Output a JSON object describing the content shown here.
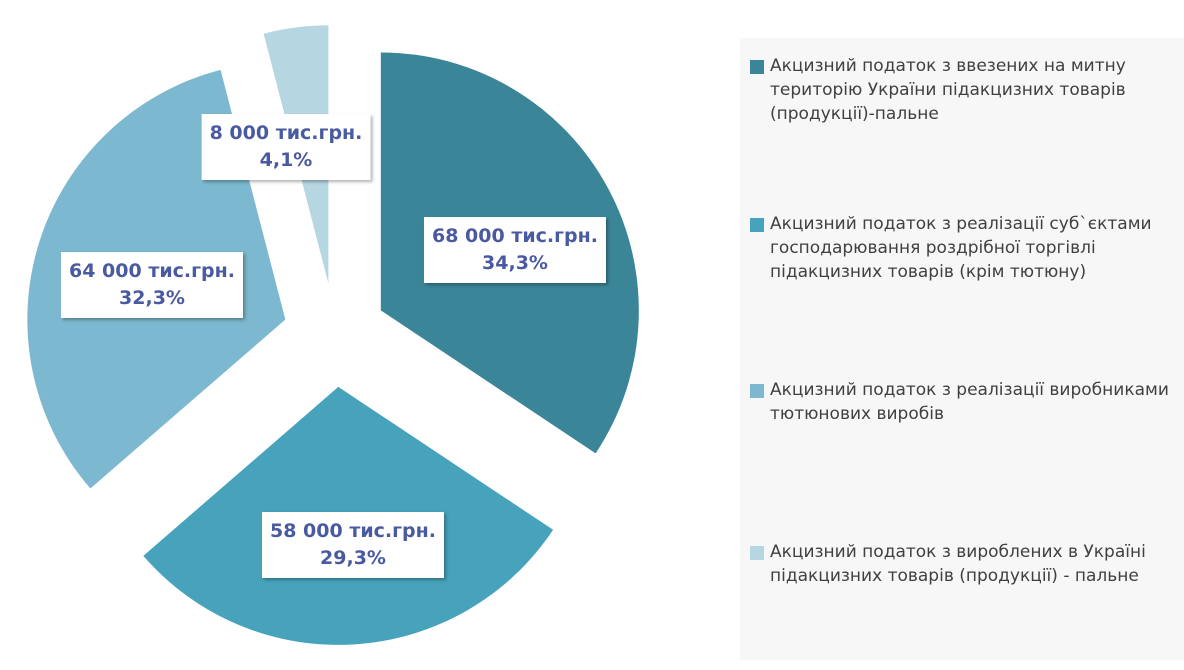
{
  "chart_data": {
    "type": "pie",
    "categories": [
      "Акцизний податок з ввезених на митну територію України підакцизних товарів (продукції)-пальне",
      "Акцизний податок з реалізації суб`єктами господарювання роздрібної торгівлі підакцизних товарів (крім тютюну)",
      "Акцизний податок з реалізації виробниками тютюнових виробів",
      "Акцизний податок з вироблених в Україні підакцизних товарів (продукції) - пальне"
    ],
    "values": [
      68000,
      58000,
      64000,
      8000
    ],
    "value_labels": [
      "68 000 тис.грн.",
      "58 000 тис.грн.",
      "64 000 тис.грн.",
      "8 000 тис.грн."
    ],
    "percent_labels": [
      "34,3%",
      "29,3%",
      "32,3%",
      "4,1%"
    ],
    "colors": [
      "#3b8599",
      "#46a3bb",
      "#7cb8cf",
      "#b6d6e2"
    ],
    "legend": "right"
  }
}
